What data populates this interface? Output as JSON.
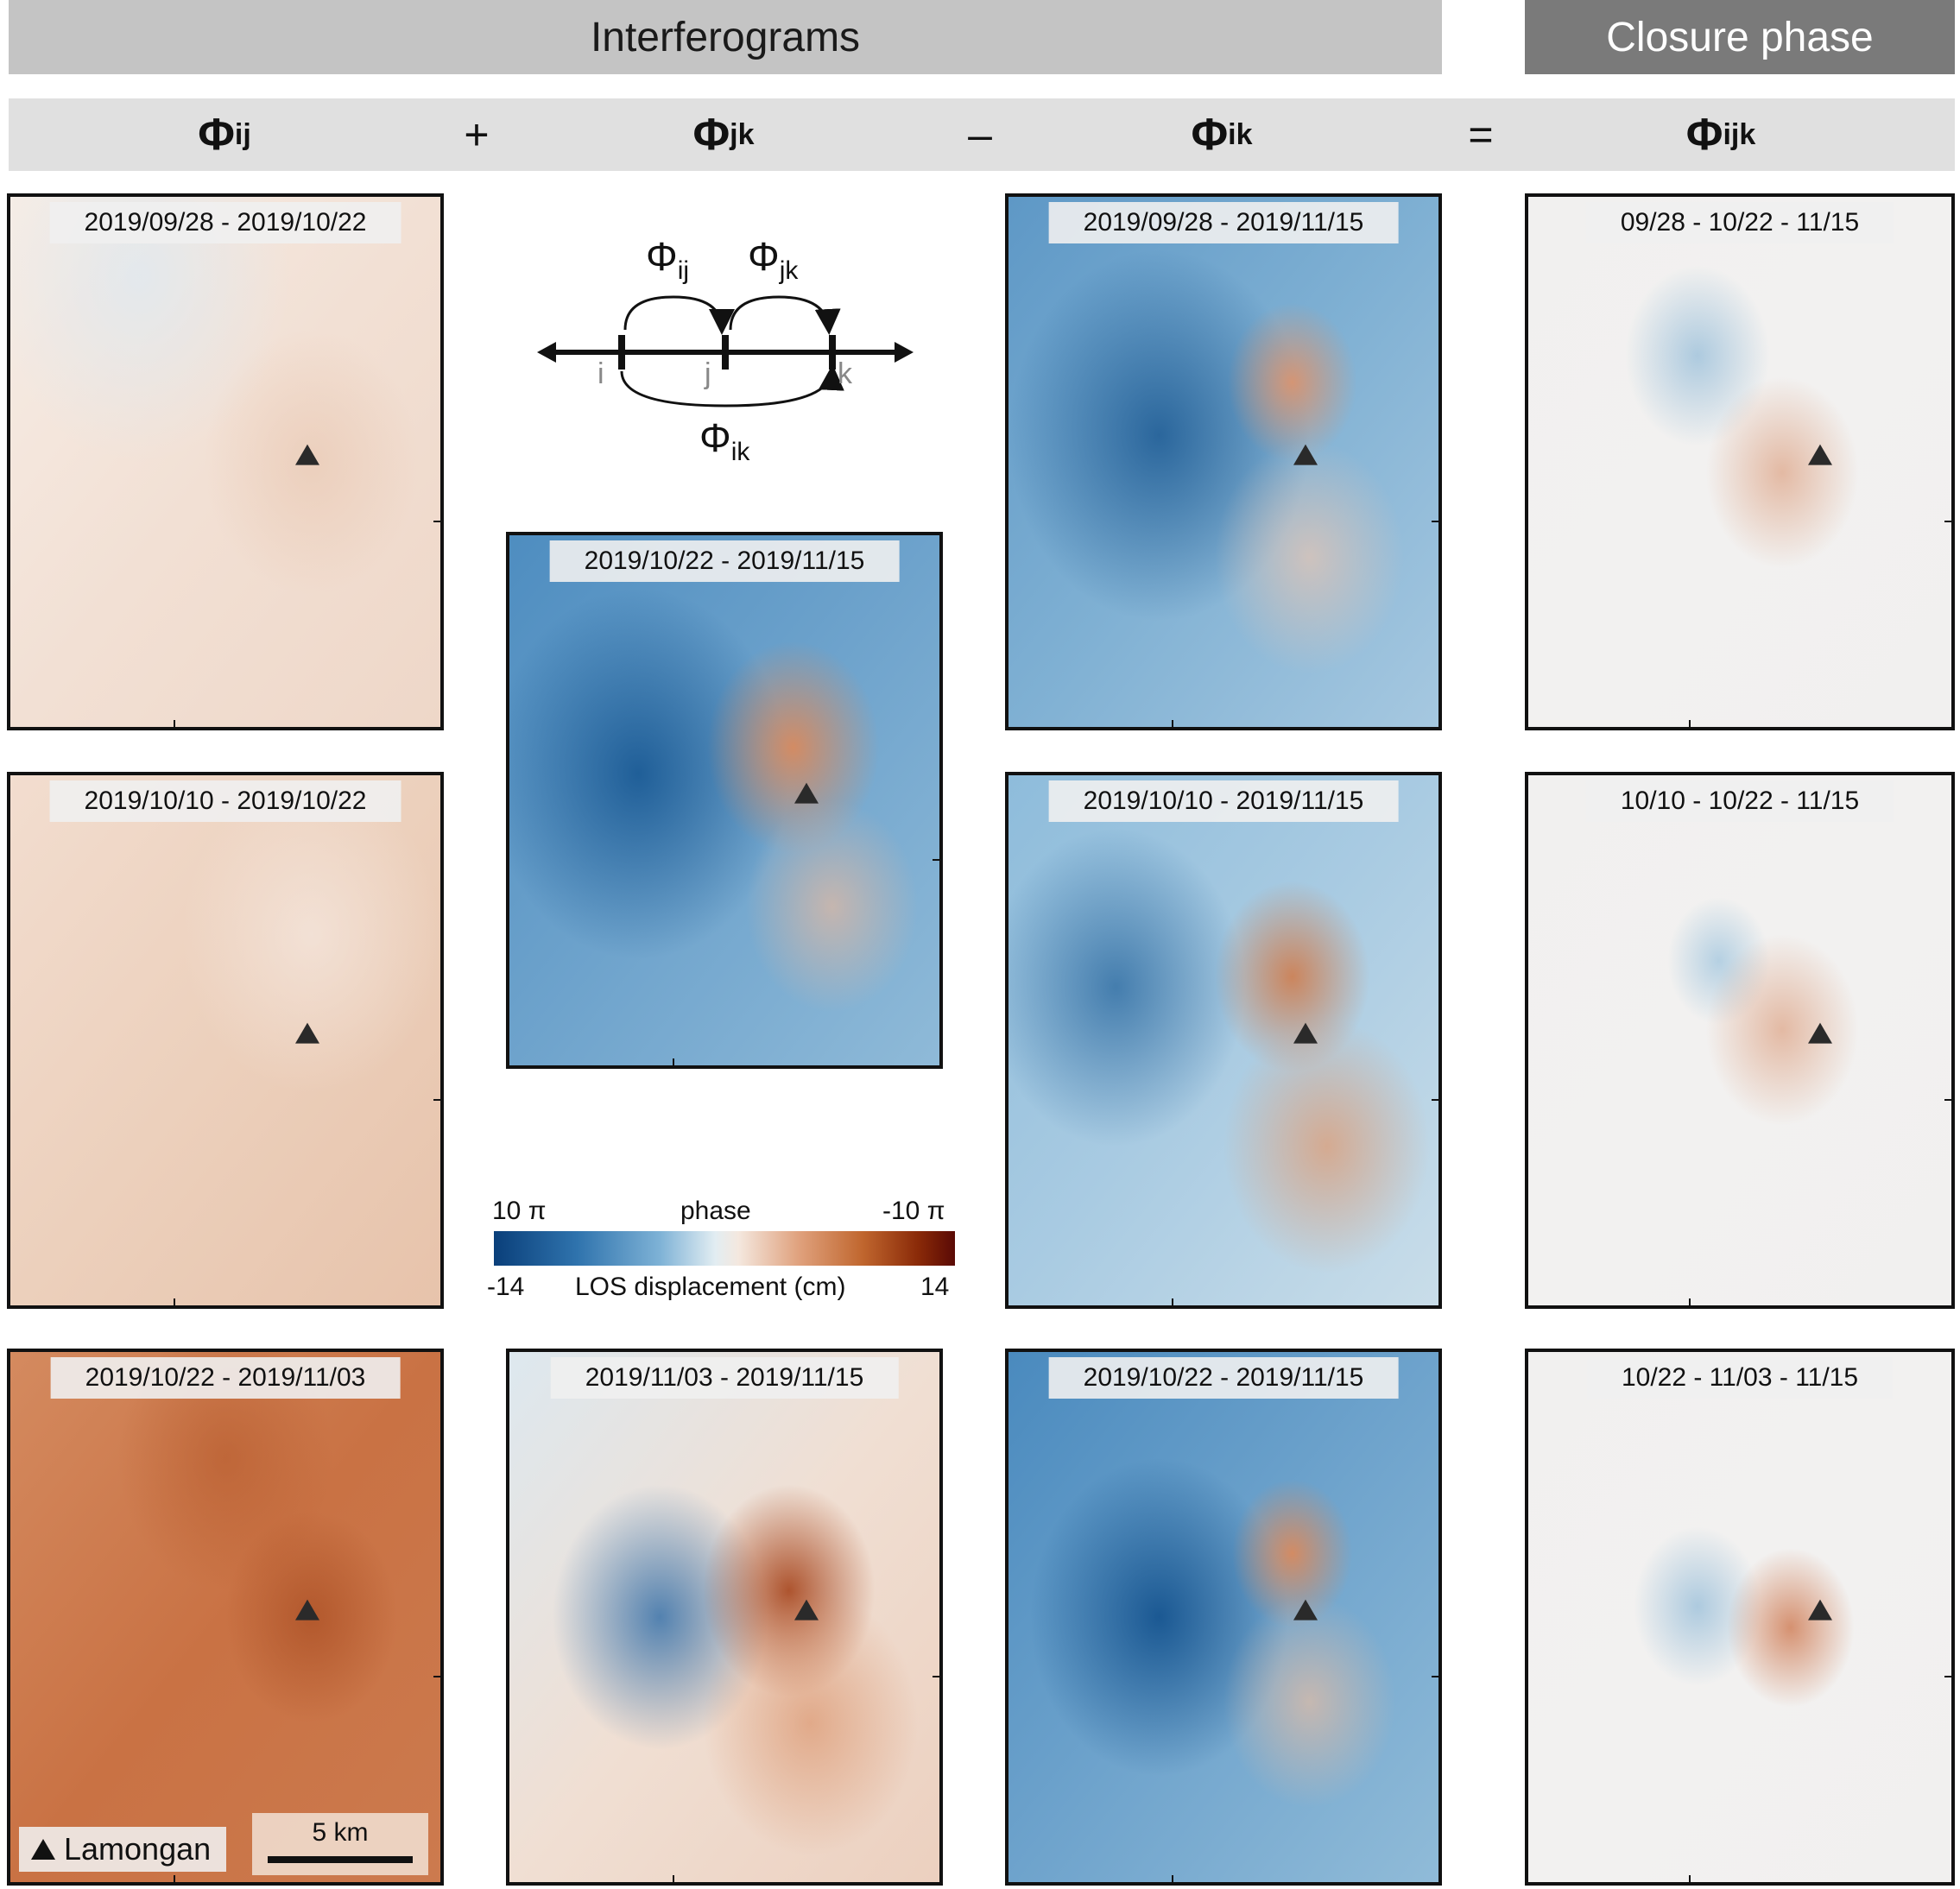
{
  "banners": {
    "interferograms": "Interferograms",
    "closure": "Closure phase"
  },
  "header": {
    "phi_ij": {
      "base": "Φ",
      "sub": "ij"
    },
    "plus": "+",
    "phi_jk": {
      "base": "Φ",
      "sub": "jk"
    },
    "minus": "–",
    "phi_ik": {
      "base": "Φ",
      "sub": "ik"
    },
    "equals": "=",
    "phi_ijk": {
      "base": "Φ",
      "sub": "ijk"
    }
  },
  "timeline": {
    "phi_ij": {
      "base": "Φ",
      "sub": "ij"
    },
    "phi_jk": {
      "base": "Φ",
      "sub": "jk"
    },
    "phi_ik": {
      "base": "Φ",
      "sub": "ik"
    },
    "i": "i",
    "j": "j",
    "k": "k"
  },
  "colorbar": {
    "phase_left": "10 π",
    "phase_title": "phase",
    "phase_right": "-10 π",
    "disp_left": "-14",
    "disp_title": "LOS displacement (cm)",
    "disp_right": "14"
  },
  "legend": {
    "volcano": "Lamongan",
    "scale": "5 km"
  },
  "panels": {
    "p1": {
      "date": "2019/09/28 - 2019/10/22"
    },
    "p2": {
      "date": "2019/10/10 - 2019/10/22"
    },
    "p3": {
      "date": "2019/10/22 - 2019/11/03"
    },
    "p4": {
      "date": "2019/10/22 - 2019/11/15"
    },
    "p5": {
      "date": "2019/11/03 - 2019/11/15"
    },
    "p6": {
      "date": "2019/09/28 - 2019/11/15"
    },
    "p7": {
      "date": "2019/10/10 - 2019/11/15"
    },
    "p8": {
      "date": "2019/10/22 - 2019/11/15"
    },
    "p9": {
      "date": "09/28 - 10/22 - 11/15"
    },
    "p10": {
      "date": "10/10 - 10/22 - 11/15"
    },
    "p11": {
      "date": "10/22 - 11/03 - 11/15"
    }
  }
}
